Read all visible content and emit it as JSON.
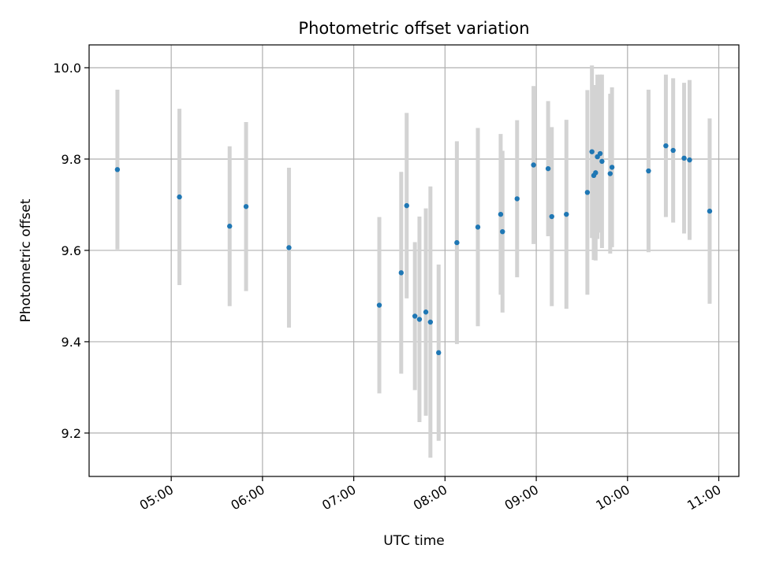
{
  "chart_data": {
    "type": "scatter",
    "title": "Photometric offset variation",
    "xlabel": "UTC time",
    "ylabel": "Photometric offset",
    "x_unit": "hours UTC",
    "xlim": [
      4.1,
      11.22
    ],
    "ylim": [
      9.105,
      10.05
    ],
    "x_ticks": [
      5,
      6,
      7,
      8,
      9,
      10,
      11
    ],
    "x_tick_labels": [
      "05:00",
      "06:00",
      "07:00",
      "08:00",
      "09:00",
      "10:00",
      "11:00"
    ],
    "y_ticks": [
      9.2,
      9.4,
      9.6,
      9.8,
      10.0
    ],
    "y_tick_labels": [
      "9.2",
      "9.4",
      "9.6",
      "9.8",
      "10.0"
    ],
    "grid": true,
    "point_color": "#1f77b4",
    "errorbar_color": "#d3d3d3",
    "points": [
      {
        "x": 4.41,
        "y": 9.777,
        "err": 0.175
      },
      {
        "x": 5.09,
        "y": 9.717,
        "err": 0.193
      },
      {
        "x": 5.64,
        "y": 9.653,
        "err": 0.175
      },
      {
        "x": 5.82,
        "y": 9.696,
        "err": 0.185
      },
      {
        "x": 6.29,
        "y": 9.606,
        "err": 0.175
      },
      {
        "x": 7.28,
        "y": 9.48,
        "err": 0.193
      },
      {
        "x": 7.52,
        "y": 9.551,
        "err": 0.221
      },
      {
        "x": 7.58,
        "y": 9.698,
        "err": 0.203
      },
      {
        "x": 7.67,
        "y": 9.456,
        "err": 0.162
      },
      {
        "x": 7.72,
        "y": 9.449,
        "err": 0.225
      },
      {
        "x": 7.79,
        "y": 9.465,
        "err": 0.227
      },
      {
        "x": 7.84,
        "y": 9.443,
        "err": 0.297
      },
      {
        "x": 7.93,
        "y": 9.376,
        "err": 0.193
      },
      {
        "x": 8.13,
        "y": 9.617,
        "err": 0.222
      },
      {
        "x": 8.36,
        "y": 9.651,
        "err": 0.217
      },
      {
        "x": 8.61,
        "y": 9.679,
        "err": 0.176
      },
      {
        "x": 8.63,
        "y": 9.641,
        "err": 0.177
      },
      {
        "x": 8.79,
        "y": 9.713,
        "err": 0.172
      },
      {
        "x": 8.97,
        "y": 9.787,
        "err": 0.173
      },
      {
        "x": 9.13,
        "y": 9.779,
        "err": 0.148
      },
      {
        "x": 9.17,
        "y": 9.674,
        "err": 0.196
      },
      {
        "x": 9.33,
        "y": 9.679,
        "err": 0.207
      },
      {
        "x": 9.56,
        "y": 9.727,
        "err": 0.224
      },
      {
        "x": 9.61,
        "y": 9.816,
        "err": 0.189
      },
      {
        "x": 9.63,
        "y": 9.764,
        "err": 0.185
      },
      {
        "x": 9.65,
        "y": 9.77,
        "err": 0.192
      },
      {
        "x": 9.67,
        "y": 9.805,
        "err": 0.18
      },
      {
        "x": 9.7,
        "y": 9.812,
        "err": 0.173
      },
      {
        "x": 9.72,
        "y": 9.795,
        "err": 0.19
      },
      {
        "x": 9.81,
        "y": 9.768,
        "err": 0.175
      },
      {
        "x": 9.83,
        "y": 9.782,
        "err": 0.175
      },
      {
        "x": 10.23,
        "y": 9.774,
        "err": 0.178
      },
      {
        "x": 10.42,
        "y": 9.829,
        "err": 0.156
      },
      {
        "x": 10.5,
        "y": 9.819,
        "err": 0.158
      },
      {
        "x": 10.62,
        "y": 9.802,
        "err": 0.165
      },
      {
        "x": 10.68,
        "y": 9.798,
        "err": 0.175
      },
      {
        "x": 10.9,
        "y": 9.686,
        "err": 0.203
      }
    ]
  }
}
